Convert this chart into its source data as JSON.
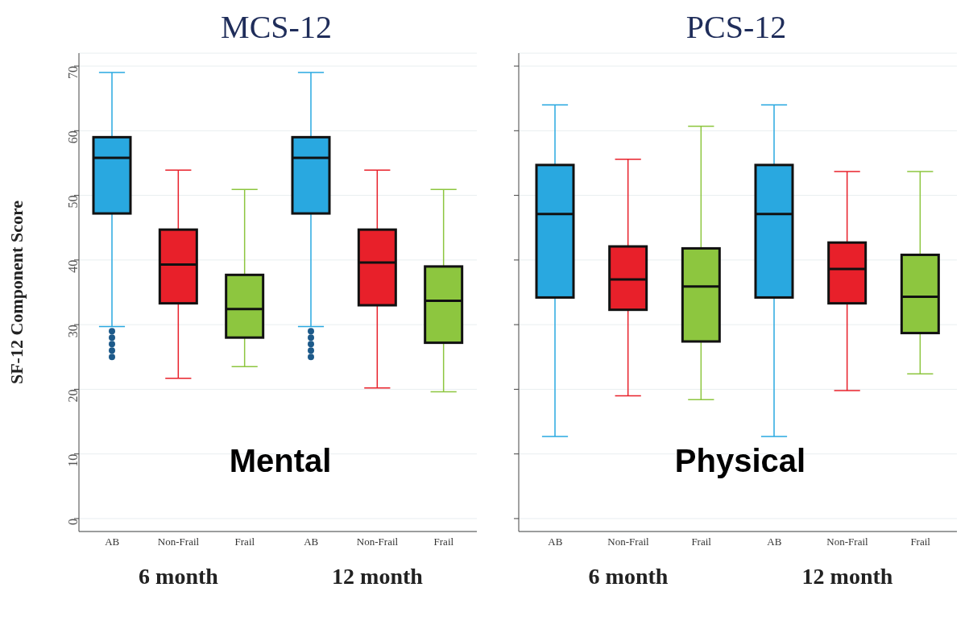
{
  "chart_data": [
    {
      "type": "box",
      "title": "MCS-12",
      "ylabel": "SF-12 Component Score",
      "categories": [
        "AB",
        "Non-Frail",
        "Frail",
        "AB",
        "Non-Frail",
        "Frail"
      ],
      "colors": [
        "#29a8e0",
        "#e8202a",
        "#8dc63f",
        "#29a8e0",
        "#e8202a",
        "#8dc63f"
      ],
      "boxes": [
        {
          "low": 29.7,
          "q1": 47.2,
          "median": 55.8,
          "q3": 59,
          "high": 69,
          "outliers": [
            29,
            28,
            27,
            26,
            25
          ]
        },
        {
          "low": 21.7,
          "q1": 33.3,
          "median": 39.3,
          "q3": 44.7,
          "high": 53.9
        },
        {
          "low": 23.5,
          "q1": 28,
          "median": 32.4,
          "q3": 37.7,
          "high": 50.9
        },
        {
          "low": 29.7,
          "q1": 47.2,
          "median": 55.8,
          "q3": 59,
          "high": 69,
          "outliers": [
            29,
            28,
            27,
            26,
            25
          ]
        },
        {
          "low": 20.2,
          "q1": 33,
          "median": 39.6,
          "q3": 44.7,
          "high": 53.9
        },
        {
          "low": 19.6,
          "q1": 27.2,
          "median": 33.7,
          "q3": 39,
          "high": 50.9
        }
      ],
      "ylim": [
        -2,
        72
      ],
      "yticks": [
        0,
        10,
        20,
        30,
        40,
        50,
        60,
        70
      ],
      "grid": "y",
      "annotations": [
        "Mental",
        "6 month",
        "12 month"
      ]
    },
    {
      "type": "box",
      "title": "PCS-12",
      "categories": [
        "AB",
        "Non-Frail",
        "Frail",
        "AB",
        "Non-Frail",
        "Frail"
      ],
      "colors": [
        "#29a8e0",
        "#e8202a",
        "#8dc63f",
        "#29a8e0",
        "#e8202a",
        "#8dc63f"
      ],
      "boxes": [
        {
          "low": 12.7,
          "q1": 34.2,
          "median": 47.1,
          "q3": 54.7,
          "high": 64
        },
        {
          "low": 19,
          "q1": 32.3,
          "median": 37,
          "q3": 42.1,
          "high": 55.6
        },
        {
          "low": 18.4,
          "q1": 27.4,
          "median": 35.9,
          "q3": 41.8,
          "high": 60.7
        },
        {
          "low": 12.7,
          "q1": 34.2,
          "median": 47.1,
          "q3": 54.7,
          "high": 64
        },
        {
          "low": 19.8,
          "q1": 33.3,
          "median": 38.6,
          "q3": 42.7,
          "high": 53.7
        },
        {
          "low": 22.4,
          "q1": 28.7,
          "median": 34.3,
          "q3": 40.8,
          "high": 53.7
        }
      ],
      "ylim": [
        -2,
        72
      ],
      "yticks": [
        0,
        10,
        20,
        30,
        40,
        50,
        60,
        70
      ],
      "grid": "y",
      "tick_labels": "x",
      "annotations": [
        "Physical",
        "6 month",
        "12 month"
      ]
    }
  ]
}
